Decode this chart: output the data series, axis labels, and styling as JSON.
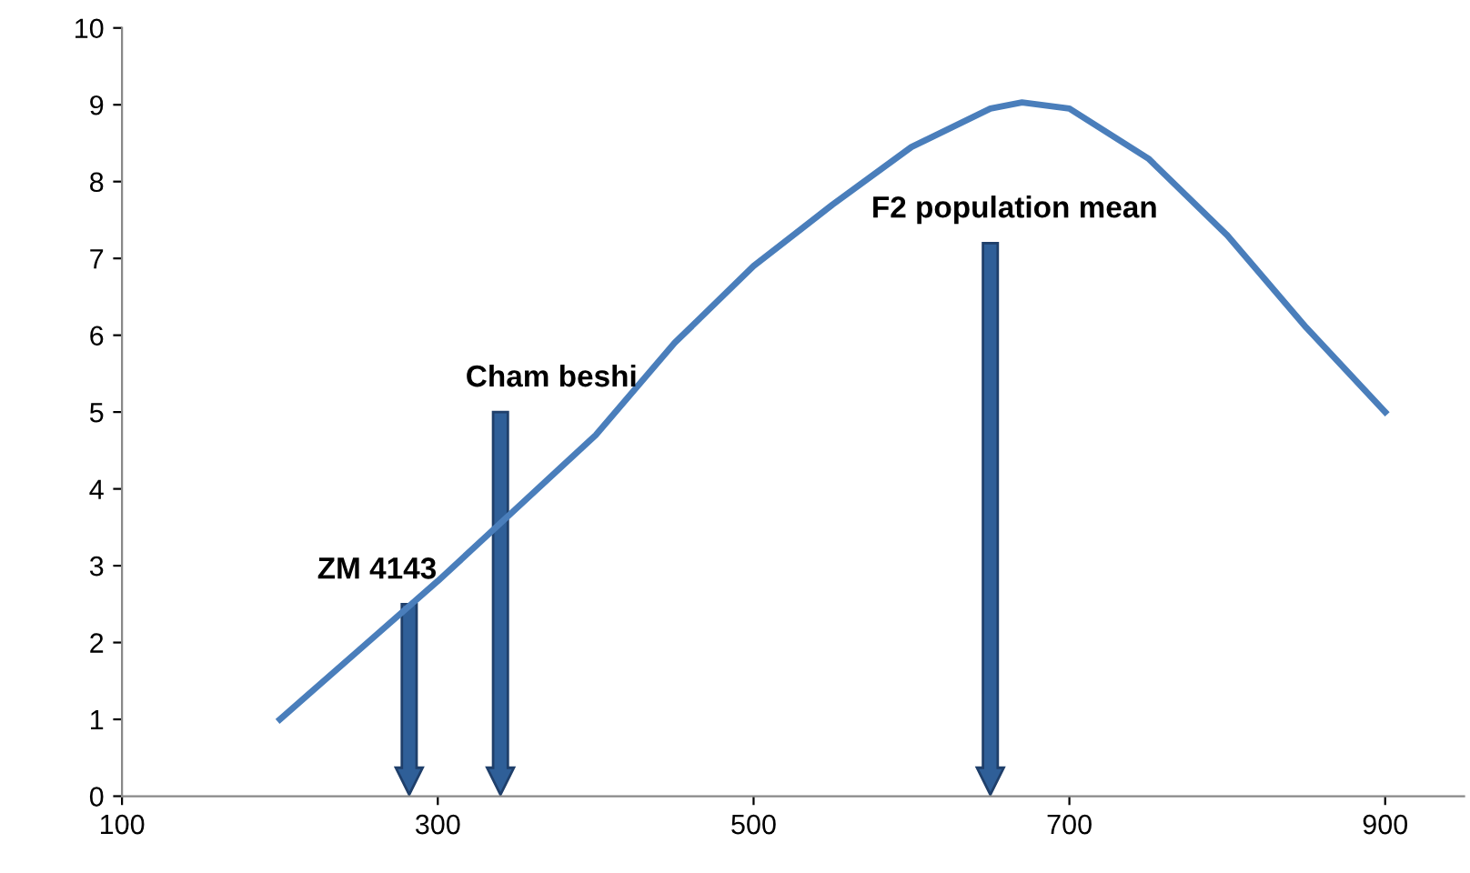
{
  "chart_data": {
    "type": "line",
    "x": [
      200,
      250,
      300,
      350,
      400,
      450,
      500,
      550,
      600,
      650,
      670,
      700,
      750,
      800,
      850,
      900
    ],
    "series": [
      {
        "color": "#4a7ebb",
        "values": [
          1,
          1.9,
          2.8,
          3.75,
          4.7,
          5.9,
          6.9,
          7.7,
          8.45,
          8.95,
          9.03,
          8.95,
          8.3,
          7.3,
          6.1,
          5
        ]
      }
    ],
    "xlim": [
      100,
      950
    ],
    "xticks": [
      100,
      300,
      500,
      700,
      900
    ],
    "ylim": [
      0,
      10
    ],
    "yticks": [
      0,
      1,
      2,
      3,
      4,
      5,
      6,
      7,
      8,
      9,
      10
    ],
    "grid": false,
    "marker": "none",
    "line_style": "solid",
    "annotations": [
      "ZM 4143",
      "Cham beshi",
      "F2 population mean"
    ]
  }
}
